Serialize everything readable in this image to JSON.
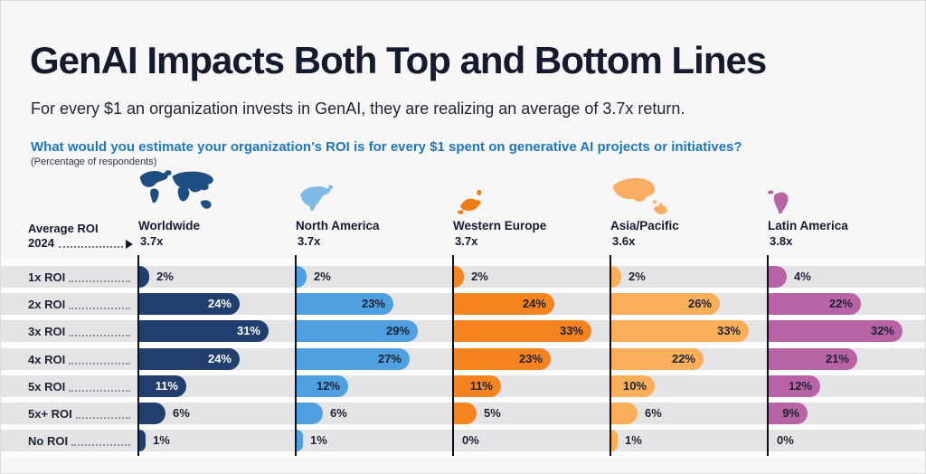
{
  "page": {
    "title": "GenAI Impacts Both Top and Bottom Lines",
    "subtitle": "For every $1 an organization invests in GenAI, they are realizing an average of 3.7x return.",
    "question": "What would you estimate your organization’s ROI is for every $1 spent on generative AI projects or initiatives?",
    "note": "(Percentage of respondents)",
    "average_roi_label": {
      "line1": "Average ROI",
      "line2": "2024"
    }
  },
  "colors": {
    "title_navy": "#141b2d",
    "question_blue": "#1d77c0",
    "band_gray": "#e4e4e6",
    "axis_black": "#0c1118",
    "value_text_dark": "#1b2230",
    "value_text_light": "#ffffff"
  },
  "chart_data": {
    "type": "bar",
    "orientation": "horizontal",
    "unit": "%",
    "grid": false,
    "xlim": [
      0,
      35
    ],
    "legend_position": "column-headers",
    "categories": [
      "1x ROI",
      "2x ROI",
      "3x ROI",
      "4x ROI",
      "5x ROI",
      "5x+ ROI",
      "No ROI"
    ],
    "series": [
      {
        "name": "Worldwide",
        "average_roi": "3.7x",
        "icon": "worldwide-map-icon",
        "color": "#203e6e",
        "map_color": "#1d4e81",
        "values": [
          2,
          24,
          31,
          24,
          11,
          6,
          1
        ],
        "labels": [
          "2%",
          "24%",
          "31%",
          "24%",
          "11%",
          "6%",
          "1%"
        ]
      },
      {
        "name": "North America",
        "average_roi": "3.7x",
        "icon": "north-america-map-icon",
        "color": "#4fa0e0",
        "map_color": "#7fb9e6",
        "values": [
          2,
          23,
          29,
          27,
          12,
          6,
          1
        ],
        "labels": [
          "2%",
          "23%",
          "29%",
          "27%",
          "12%",
          "6%",
          "1%"
        ]
      },
      {
        "name": "Western Europe",
        "average_roi": "3.7x",
        "icon": "western-europe-map-icon",
        "color": "#f5831f",
        "map_color": "#ed7d18",
        "values": [
          2,
          24,
          33,
          23,
          11,
          5,
          0
        ],
        "labels": [
          "2%",
          "24%",
          "33%",
          "23%",
          "11%",
          "5%",
          "0%"
        ]
      },
      {
        "name": "Asia/Pacific",
        "average_roi": "3.6x",
        "icon": "asia-pacific-map-icon",
        "color": "#f9ae5a",
        "map_color": "#f8ad62",
        "values": [
          2,
          26,
          33,
          22,
          10,
          6,
          1
        ],
        "labels": [
          "2%",
          "26%",
          "33%",
          "22%",
          "10%",
          "6%",
          "1%"
        ]
      },
      {
        "name": "Latin America",
        "average_roi": "3.8x",
        "icon": "latin-america-map-icon",
        "color": "#b763a5",
        "map_color": "#b565a3",
        "values": [
          4,
          22,
          32,
          21,
          12,
          9,
          0
        ],
        "labels": [
          "4%",
          "22%",
          "32%",
          "21%",
          "12%",
          "9%",
          "0%"
        ]
      }
    ]
  }
}
